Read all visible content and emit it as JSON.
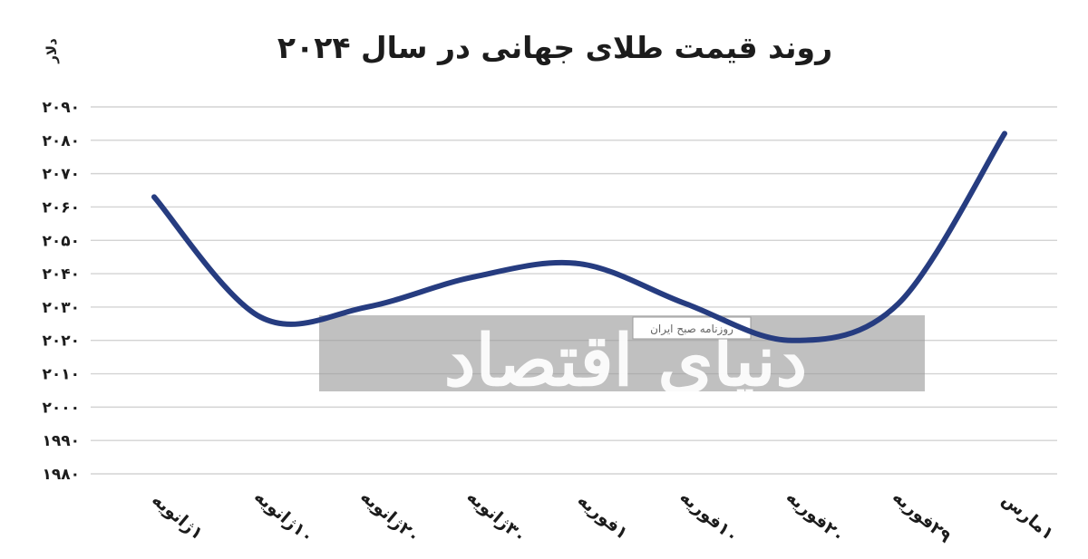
{
  "chart_data": {
    "type": "line",
    "title": "روند قیمت طلای جهانی در سال ۲۰۲۴",
    "ylabel": "دلار",
    "xlabel": "",
    "ylim": [
      1980,
      2090
    ],
    "yticks": [
      "۲۰۹۰",
      "۲۰۸۰",
      "۲۰۷۰",
      "۲۰۶۰",
      "۲۰۵۰",
      "۲۰۴۰",
      "۲۰۳۰",
      "۲۰۲۰",
      "۲۰۱۰",
      "۲۰۰۰",
      "۱۹۹۰",
      "۱۹۸۰"
    ],
    "ytick_values": [
      2090,
      2080,
      2070,
      2060,
      2050,
      2040,
      2030,
      2020,
      2010,
      2000,
      1990,
      1980
    ],
    "categories": [
      "۱ژانویه",
      "۱۰ژانویه",
      "۲۰ژانویه",
      "۳۰ژانویه",
      "۱فوریه",
      "۱۰فوریه",
      "۲۰فوریه",
      "۲۹فوریه",
      "۱مارس"
    ],
    "series": [
      {
        "values": [
          2063,
          2027,
          2030,
          2039,
          2043,
          2031,
          2020,
          2031,
          2082
        ]
      }
    ],
    "grid": true,
    "legend": "none",
    "line_color": "#263c80"
  },
  "watermark": {
    "text": "دنیای اقتصاد",
    "subtext": "روزنامه صبح ایران"
  }
}
